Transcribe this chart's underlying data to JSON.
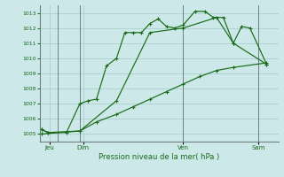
{
  "bg_color": "#cce8e8",
  "grid_color": "#aad0d0",
  "line_color": "#1a6b1a",
  "title": "Pression niveau de la mer( hPa )",
  "ylim": [
    1004.5,
    1013.5
  ],
  "yticks": [
    1005,
    1006,
    1007,
    1008,
    1009,
    1010,
    1011,
    1012,
    1013
  ],
  "day_labels": [
    "Jeu",
    "Dim",
    "Ven",
    "Sam"
  ],
  "day_positions": [
    0.5,
    2.5,
    8.5,
    13.0
  ],
  "vline_positions": [
    1.0,
    2.3,
    8.5,
    13.0
  ],
  "line1_x": [
    0.0,
    0.4,
    1.5,
    2.3,
    2.8,
    3.3,
    3.9,
    4.5,
    5.0,
    5.5,
    6.0,
    6.5,
    7.0,
    7.5,
    8.0,
    8.5,
    9.2,
    9.8,
    10.3,
    10.9,
    11.5,
    12.0,
    12.5,
    13.5
  ],
  "line1_y": [
    1005.3,
    1005.1,
    1005.1,
    1007.0,
    1007.2,
    1007.3,
    1009.5,
    1010.0,
    1011.7,
    1011.7,
    1011.7,
    1012.3,
    1012.6,
    1012.1,
    1012.0,
    1012.2,
    1013.1,
    1013.1,
    1012.7,
    1012.7,
    1011.0,
    1012.1,
    1012.0,
    1009.6
  ],
  "line2_x": [
    0.0,
    0.4,
    2.3,
    3.3,
    4.5,
    5.5,
    6.5,
    7.5,
    8.5,
    9.5,
    10.5,
    11.5,
    13.5
  ],
  "line2_y": [
    1005.3,
    1005.1,
    1005.2,
    1005.8,
    1006.3,
    1006.8,
    1007.3,
    1007.8,
    1008.3,
    1008.8,
    1009.2,
    1009.4,
    1009.7
  ],
  "line3_x": [
    0.0,
    2.3,
    4.5,
    6.5,
    8.5,
    10.5,
    11.5,
    13.5
  ],
  "line3_y": [
    1005.0,
    1005.2,
    1007.2,
    1011.7,
    1012.0,
    1012.7,
    1011.0,
    1009.6
  ]
}
